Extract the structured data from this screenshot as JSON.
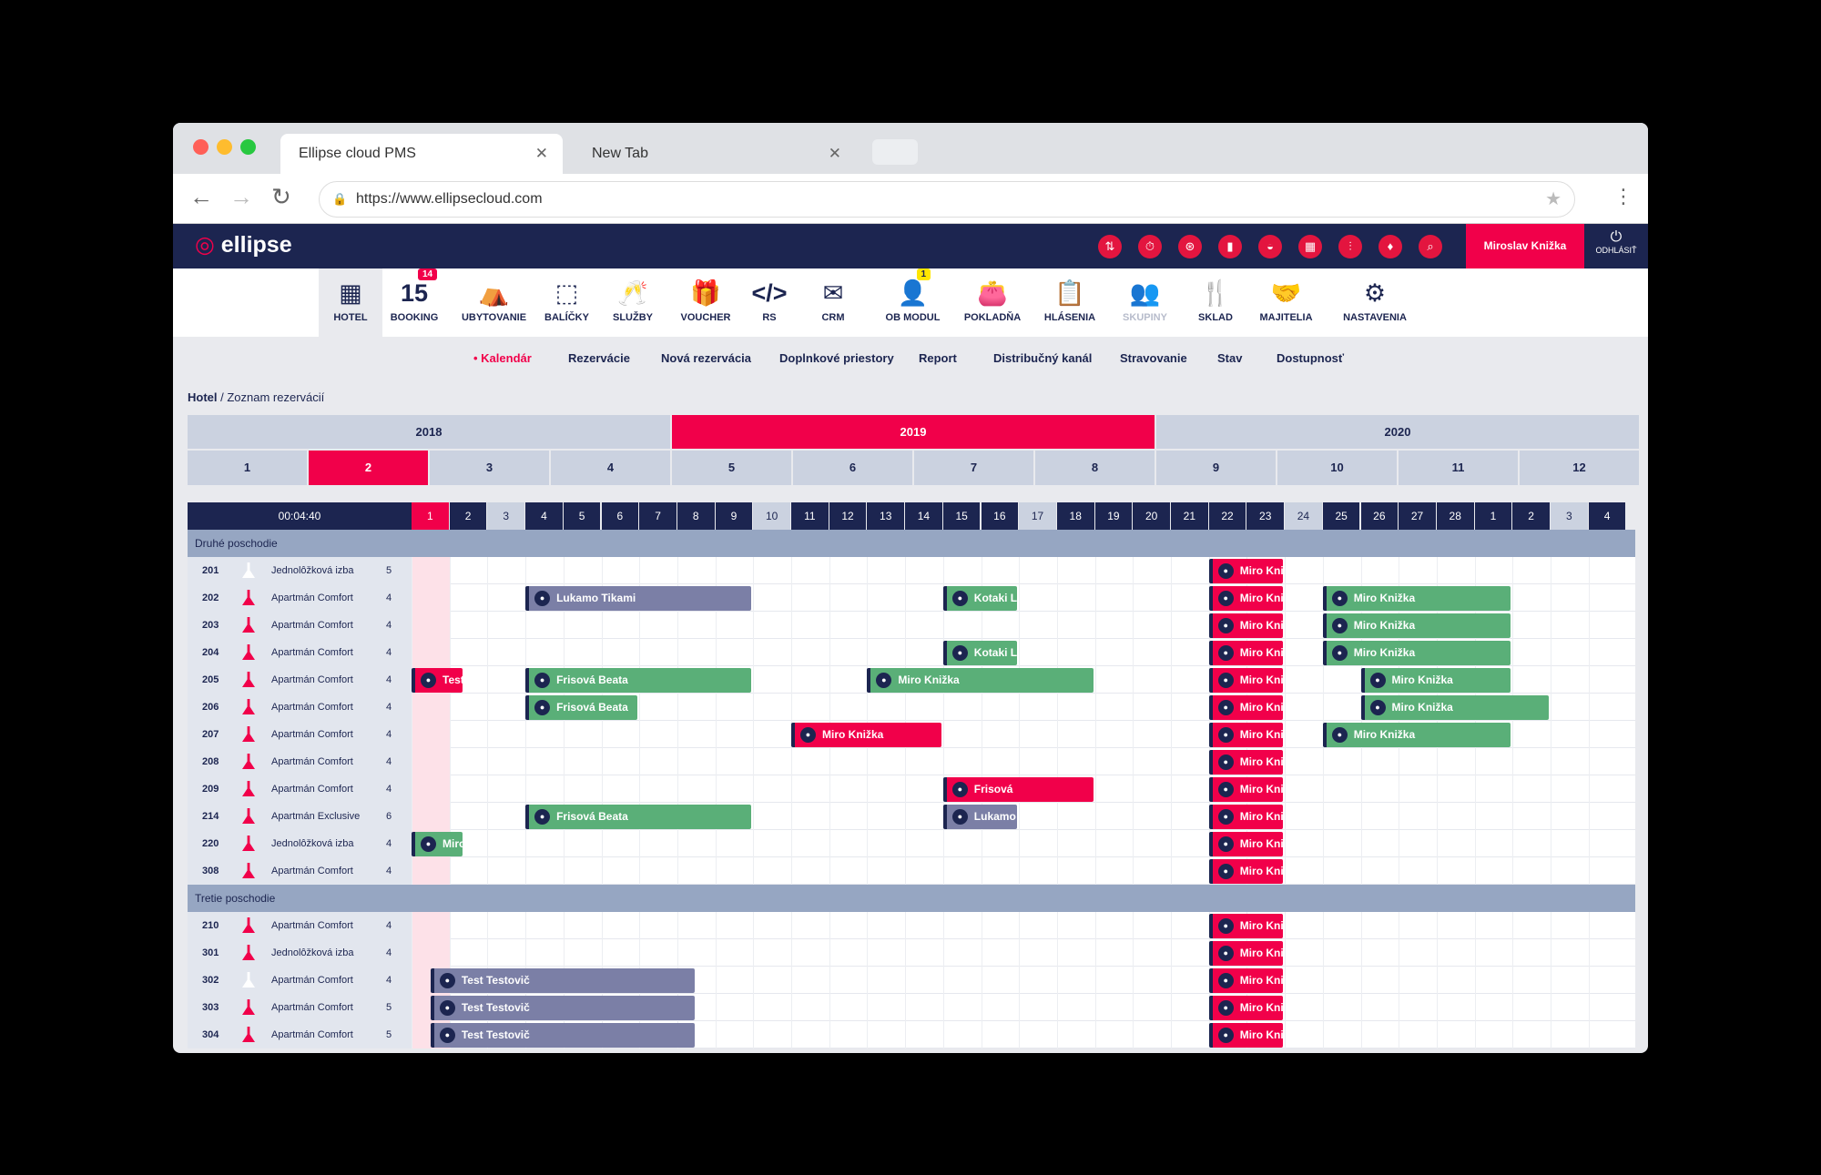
{
  "browser": {
    "tab_active": "Ellipse cloud PMS",
    "tab_new": "New Tab",
    "url": "https://www.ellipsecloud.com"
  },
  "app": {
    "logo": "ellipse",
    "user": "Miroslav Knižka",
    "logout": "ODHLÁSIŤ"
  },
  "modules": [
    {
      "label": "HOTEL",
      "icon": "hotel-icon",
      "glyph": "▦"
    },
    {
      "label": "BOOKING",
      "icon": "calendar-icon",
      "glyph": "15",
      "badge": "14"
    },
    {
      "label": "UBYTOVANIE",
      "icon": "bed-icon",
      "glyph": "⛺"
    },
    {
      "label": "BALÍČKY",
      "icon": "package-icon",
      "glyph": "⬚"
    },
    {
      "label": "SLUŽBY",
      "icon": "cheers-icon",
      "glyph": "🥂"
    },
    {
      "label": "VOUCHER",
      "icon": "gift-icon",
      "glyph": "🎁"
    },
    {
      "label": "RS",
      "icon": "code-icon",
      "glyph": "</>"
    },
    {
      "label": "CRM",
      "icon": "mail-icon",
      "glyph": "✉"
    },
    {
      "label": "OB MODUL",
      "icon": "person-icon",
      "glyph": "👤",
      "badge": "1"
    },
    {
      "label": "POKLADŇA",
      "icon": "wallet-icon",
      "glyph": "👛"
    },
    {
      "label": "HLÁSENIA",
      "icon": "clipboard-icon",
      "glyph": "📋"
    },
    {
      "label": "SKUPINY",
      "icon": "group-icon",
      "glyph": "👥"
    },
    {
      "label": "SKLAD",
      "icon": "cutlery-icon",
      "glyph": "🍴"
    },
    {
      "label": "MAJITELIA",
      "icon": "handshake-icon",
      "glyph": "🤝"
    },
    {
      "label": "NASTAVENIA",
      "icon": "gears-icon",
      "glyph": "⚙"
    }
  ],
  "submenu": [
    "Kalendár",
    "Rezervácie",
    "Nová rezervácia",
    "Doplnkové priestory",
    "Report",
    "Distribučný kanál",
    "Stravovanie",
    "Stav",
    "Dostupnosť"
  ],
  "breadcrumb": {
    "root": "Hotel",
    "page": "Zoznam rezervácií"
  },
  "years": [
    "2018",
    "2019",
    "2020"
  ],
  "months": [
    "1",
    "2",
    "3",
    "4",
    "5",
    "6",
    "7",
    "8",
    "9",
    "10",
    "11",
    "12"
  ],
  "clock": "00:04:40",
  "days": [
    "1",
    "2",
    "3",
    "4",
    "5",
    "6",
    "7",
    "8",
    "9",
    "10",
    "11",
    "12",
    "13",
    "14",
    "15",
    "16",
    "17",
    "18",
    "19",
    "20",
    "21",
    "22",
    "23",
    "24",
    "25",
    "26",
    "27",
    "28",
    "1",
    "2",
    "3",
    "4"
  ],
  "floors": [
    {
      "name": "Druhé poschodie",
      "rooms": [
        {
          "no": "201",
          "type": "Jednolôžková izba",
          "cap": "5"
        },
        {
          "no": "202",
          "type": "Apartmán Comfort",
          "cap": "4"
        },
        {
          "no": "203",
          "type": "Apartmán Comfort",
          "cap": "4"
        },
        {
          "no": "204",
          "type": "Apartmán Comfort",
          "cap": "4"
        },
        {
          "no": "205",
          "type": "Apartmán Comfort",
          "cap": "4"
        },
        {
          "no": "206",
          "type": "Apartmán Comfort",
          "cap": "4"
        },
        {
          "no": "207",
          "type": "Apartmán Comfort",
          "cap": "4"
        },
        {
          "no": "208",
          "type": "Apartmán Comfort",
          "cap": "4"
        },
        {
          "no": "209",
          "type": "Apartmán Comfort",
          "cap": "4"
        },
        {
          "no": "214",
          "type": "Apartmán Exclusive",
          "cap": "6"
        },
        {
          "no": "220",
          "type": "Jednolôžková izba",
          "cap": "4"
        },
        {
          "no": "308",
          "type": "Apartmán Comfort",
          "cap": "4"
        }
      ]
    },
    {
      "name": "Tretie poschodie",
      "rooms": [
        {
          "no": "210",
          "type": "Apartmán Comfort",
          "cap": "4"
        },
        {
          "no": "301",
          "type": "Jednolôžková izba",
          "cap": "4"
        },
        {
          "no": "302",
          "type": "Apartmán Comfort",
          "cap": "4"
        },
        {
          "no": "303",
          "type": "Apartmán Comfort",
          "cap": "5"
        },
        {
          "no": "304",
          "type": "Apartmán Comfort",
          "cap": "5"
        }
      ]
    }
  ],
  "bookings": [
    {
      "row": 0,
      "start": 22,
      "len": 2,
      "label": "Miro Knižka",
      "color": "red"
    },
    {
      "row": 1,
      "start": 4,
      "len": 6,
      "label": "Lukamo Tikami",
      "color": "pur"
    },
    {
      "row": 1,
      "start": 15,
      "len": 2,
      "label": "Kotaki Leo",
      "color": "grn"
    },
    {
      "row": 1,
      "start": 22,
      "len": 2,
      "label": "Miro Knižka",
      "color": "red"
    },
    {
      "row": 1,
      "start": 25,
      "len": 5,
      "label": "Miro Knižka",
      "color": "grn"
    },
    {
      "row": 2,
      "start": 22,
      "len": 2,
      "label": "Miro Knižka",
      "color": "red"
    },
    {
      "row": 2,
      "start": 25,
      "len": 5,
      "label": "Miro Knižka",
      "color": "grn"
    },
    {
      "row": 3,
      "start": 15,
      "len": 2,
      "label": "Kotaki Leo",
      "color": "grn"
    },
    {
      "row": 3,
      "start": 22,
      "len": 2,
      "label": "Miro Knižka",
      "color": "red"
    },
    {
      "row": 3,
      "start": 25,
      "len": 5,
      "label": "Miro Knižka",
      "color": "grn"
    },
    {
      "row": 4,
      "start": 1,
      "len": 1.4,
      "label": "Test T",
      "color": "red"
    },
    {
      "row": 4,
      "start": 4,
      "len": 6,
      "label": "Frisová Beata",
      "color": "grn"
    },
    {
      "row": 4,
      "start": 13,
      "len": 6,
      "label": "Miro Knižka",
      "color": "grn"
    },
    {
      "row": 4,
      "start": 22,
      "len": 2,
      "label": "Miro Knižka",
      "color": "red"
    },
    {
      "row": 4,
      "start": 26,
      "len": 4,
      "label": "Miro Knižka",
      "color": "grn"
    },
    {
      "row": 5,
      "start": 4,
      "len": 3,
      "label": "Frisová Beata",
      "color": "grn"
    },
    {
      "row": 5,
      "start": 22,
      "len": 2,
      "label": "Miro Knižka",
      "color": "red"
    },
    {
      "row": 5,
      "start": 26,
      "len": 5,
      "label": "Miro Knižka",
      "color": "grn"
    },
    {
      "row": 6,
      "start": 11,
      "len": 4,
      "label": "Miro Knižka",
      "color": "red"
    },
    {
      "row": 6,
      "start": 22,
      "len": 2,
      "label": "Miro Knižka",
      "color": "red"
    },
    {
      "row": 6,
      "start": 25,
      "len": 5,
      "label": "Miro Knižka",
      "color": "grn"
    },
    {
      "row": 7,
      "start": 22,
      "len": 2,
      "label": "Miro Knižka",
      "color": "red"
    },
    {
      "row": 8,
      "start": 15,
      "len": 4,
      "label": "Frisová",
      "color": "red"
    },
    {
      "row": 8,
      "start": 22,
      "len": 2,
      "label": "Miro Knižka",
      "color": "red"
    },
    {
      "row": 9,
      "start": 4,
      "len": 6,
      "label": "Frisová Beata",
      "color": "grn"
    },
    {
      "row": 9,
      "start": 15,
      "len": 2,
      "label": "Lukamo Tikami",
      "color": "pur"
    },
    {
      "row": 9,
      "start": 22,
      "len": 2,
      "label": "Miro Knižka",
      "color": "red"
    },
    {
      "row": 10,
      "start": 1,
      "len": 1.4,
      "label": "Miroslav",
      "color": "grn"
    },
    {
      "row": 10,
      "start": 22,
      "len": 2,
      "label": "Miro Knižka",
      "color": "red"
    },
    {
      "row": 11,
      "start": 22,
      "len": 2,
      "label": "Miro Knižka",
      "color": "red"
    },
    {
      "row": 12,
      "start": 22,
      "len": 2,
      "label": "Miro Knižka",
      "color": "red"
    },
    {
      "row": 13,
      "start": 22,
      "len": 2,
      "label": "Miro Knižka",
      "color": "red"
    },
    {
      "row": 14,
      "start": 1.5,
      "len": 7,
      "label": "Test Testovič",
      "color": "pur"
    },
    {
      "row": 14,
      "start": 22,
      "len": 2,
      "label": "Miro Knižka",
      "color": "red"
    },
    {
      "row": 15,
      "start": 1.5,
      "len": 7,
      "label": "Test Testovič",
      "color": "pur"
    },
    {
      "row": 15,
      "start": 22,
      "len": 2,
      "label": "Miro Knižka",
      "color": "red"
    },
    {
      "row": 16,
      "start": 1.5,
      "len": 7,
      "label": "Test Testovič",
      "color": "pur"
    },
    {
      "row": 16,
      "start": 22,
      "len": 2,
      "label": "Miro Knižka",
      "color": "red"
    }
  ]
}
